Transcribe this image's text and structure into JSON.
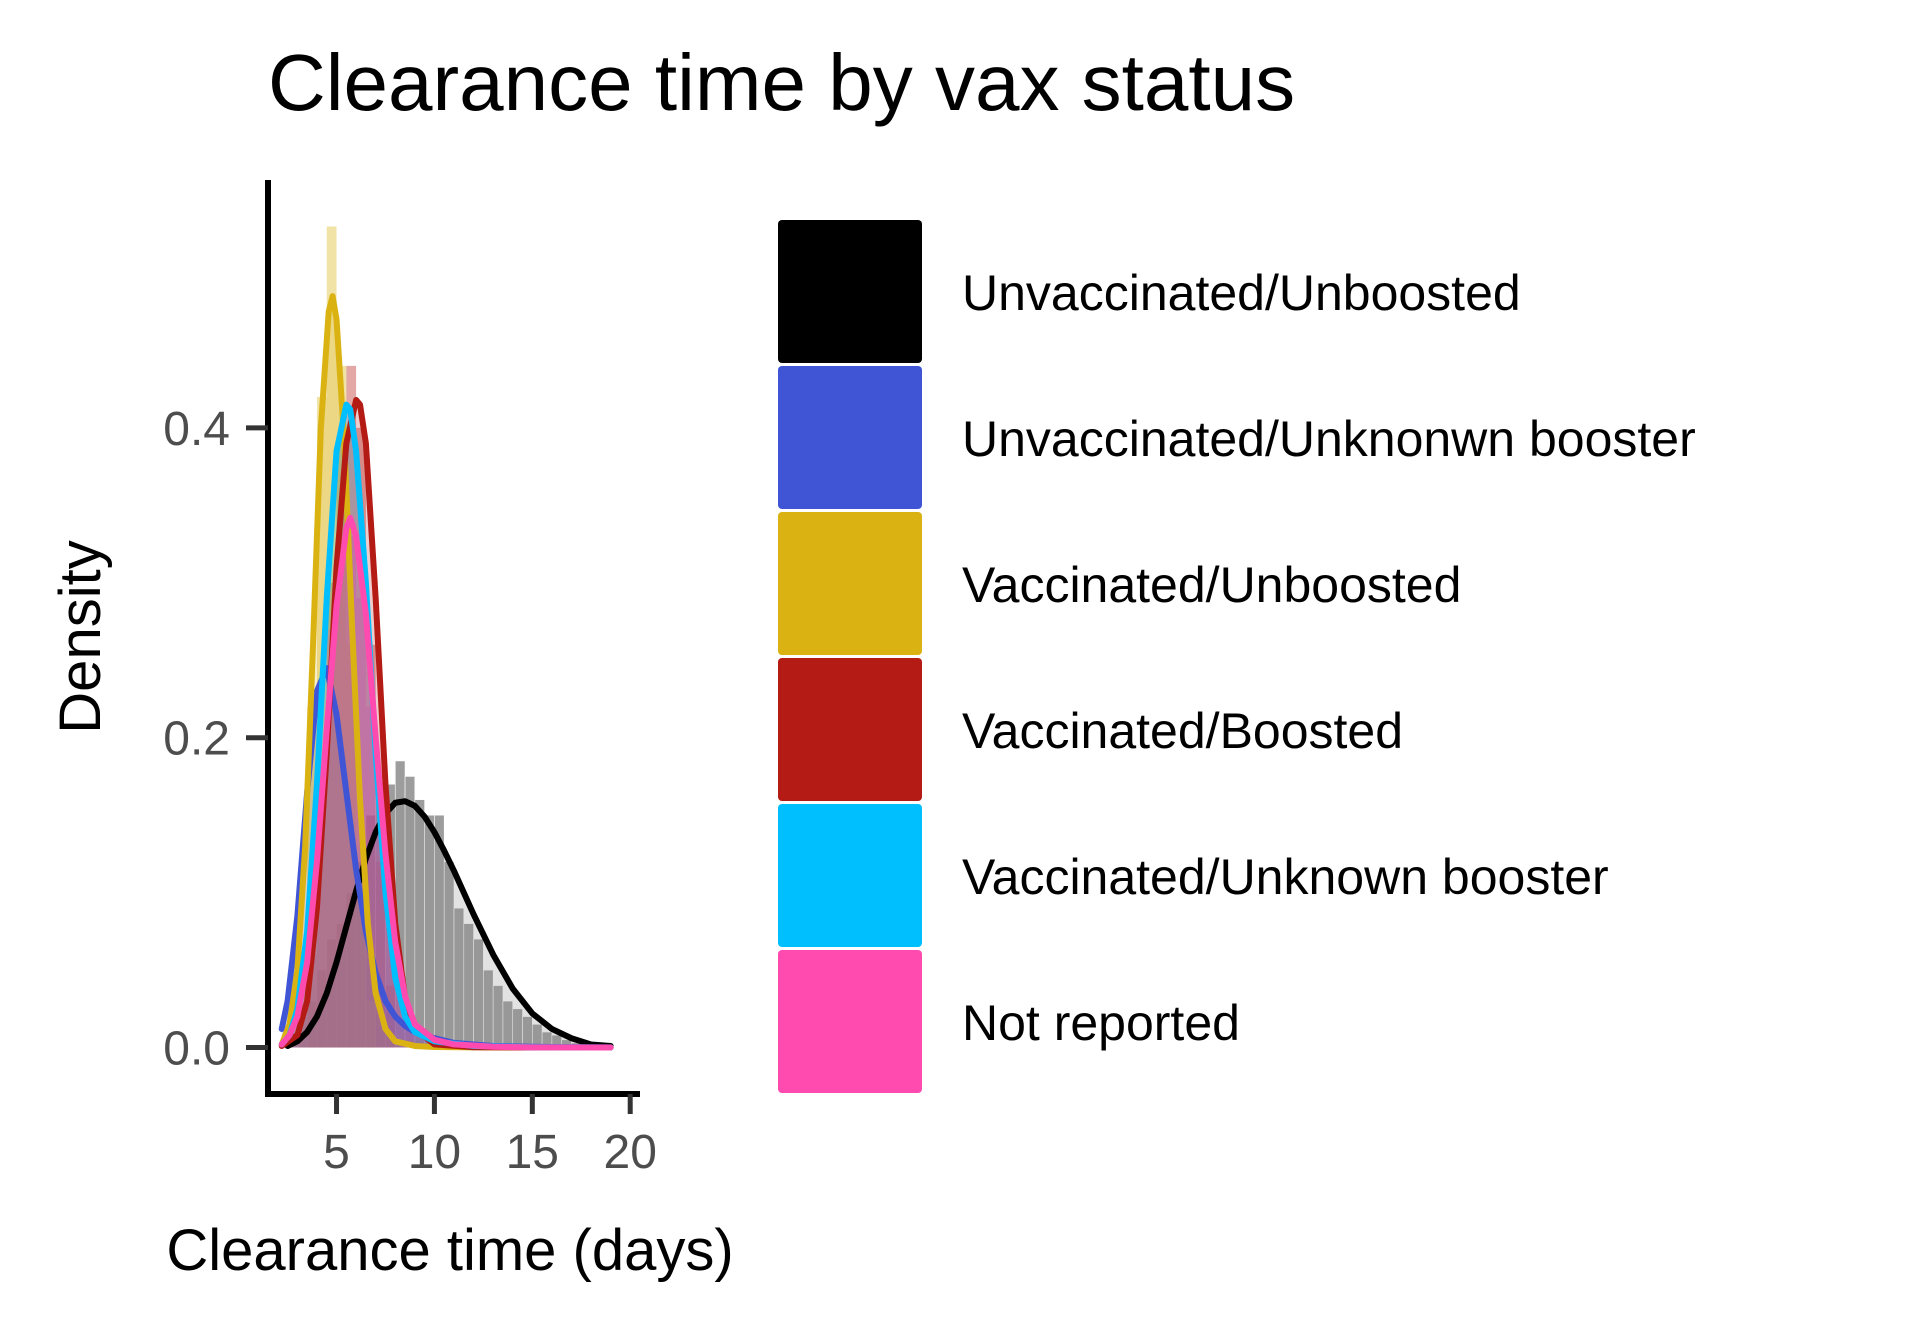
{
  "chart_data": {
    "type": "area",
    "title": "Clearance time by vax status",
    "xlabel": "Clearance time (days)",
    "ylabel": "Density",
    "xlim": [
      1.5,
      20.5
    ],
    "ylim": [
      -0.03,
      0.56
    ],
    "x_ticks": [
      5,
      10,
      15,
      20
    ],
    "x_tick_labels": [
      "5",
      "10",
      "15",
      "20"
    ],
    "y_ticks": [
      0.0,
      0.2,
      0.4
    ],
    "y_tick_labels": [
      "0.0",
      "0.2",
      "0.4"
    ],
    "grid": false,
    "legend_position": "right",
    "histograms": [
      {
        "series": "Unvaccinated/Unboosted",
        "bins": [
          {
            "x0": 2.5,
            "x1": 3.0,
            "d": 0.01
          },
          {
            "x0": 3.0,
            "x1": 3.5,
            "d": 0.02
          },
          {
            "x0": 3.5,
            "x1": 4.0,
            "d": 0.03
          },
          {
            "x0": 4.0,
            "x1": 4.5,
            "d": 0.05
          },
          {
            "x0": 4.5,
            "x1": 5.0,
            "d": 0.07
          },
          {
            "x0": 5.0,
            "x1": 5.5,
            "d": 0.08
          },
          {
            "x0": 5.5,
            "x1": 6.0,
            "d": 0.1
          },
          {
            "x0": 6.0,
            "x1": 6.5,
            "d": 0.12
          },
          {
            "x0": 6.5,
            "x1": 7.0,
            "d": 0.15
          },
          {
            "x0": 7.0,
            "x1": 7.5,
            "d": 0.17
          },
          {
            "x0": 7.5,
            "x1": 8.0,
            "d": 0.17
          },
          {
            "x0": 8.0,
            "x1": 8.5,
            "d": 0.185
          },
          {
            "x0": 8.5,
            "x1": 9.0,
            "d": 0.175
          },
          {
            "x0": 9.0,
            "x1": 9.5,
            "d": 0.16
          },
          {
            "x0": 9.5,
            "x1": 10.0,
            "d": 0.15
          },
          {
            "x0": 10.0,
            "x1": 10.5,
            "d": 0.15
          },
          {
            "x0": 10.5,
            "x1": 11.0,
            "d": 0.12
          },
          {
            "x0": 11.0,
            "x1": 11.5,
            "d": 0.09
          },
          {
            "x0": 11.5,
            "x1": 12.0,
            "d": 0.08
          },
          {
            "x0": 12.0,
            "x1": 12.5,
            "d": 0.07
          },
          {
            "x0": 12.5,
            "x1": 13.0,
            "d": 0.05
          },
          {
            "x0": 13.0,
            "x1": 13.5,
            "d": 0.04
          },
          {
            "x0": 13.5,
            "x1": 14.0,
            "d": 0.03
          },
          {
            "x0": 14.0,
            "x1": 14.5,
            "d": 0.025
          },
          {
            "x0": 14.5,
            "x1": 15.0,
            "d": 0.02
          },
          {
            "x0": 15.0,
            "x1": 15.5,
            "d": 0.015
          },
          {
            "x0": 15.5,
            "x1": 16.0,
            "d": 0.01
          },
          {
            "x0": 16.0,
            "x1": 16.5,
            "d": 0.008
          },
          {
            "x0": 16.5,
            "x1": 17.0,
            "d": 0.005
          },
          {
            "x0": 17.0,
            "x1": 17.5,
            "d": 0.003
          },
          {
            "x0": 17.5,
            "x1": 18.0,
            "d": 0.002
          },
          {
            "x0": 18.0,
            "x1": 18.5,
            "d": 0.001
          },
          {
            "x0": 18.5,
            "x1": 19.0,
            "d": 0.001
          }
        ]
      },
      {
        "series": "Vaccinated/Boosted",
        "bins": [
          {
            "x0": 3.5,
            "x1": 4.0,
            "d": 0.06
          },
          {
            "x0": 4.0,
            "x1": 4.5,
            "d": 0.16
          },
          {
            "x0": 4.5,
            "x1": 5.0,
            "d": 0.3
          },
          {
            "x0": 5.0,
            "x1": 5.5,
            "d": 0.39
          },
          {
            "x0": 5.5,
            "x1": 6.0,
            "d": 0.44
          },
          {
            "x0": 6.0,
            "x1": 6.5,
            "d": 0.4
          },
          {
            "x0": 6.5,
            "x1": 7.0,
            "d": 0.26
          },
          {
            "x0": 7.0,
            "x1": 7.5,
            "d": 0.12
          },
          {
            "x0": 7.5,
            "x1": 8.0,
            "d": 0.04
          }
        ]
      },
      {
        "series": "Vaccinated/Unboosted",
        "bins": [
          {
            "x0": 3.0,
            "x1": 3.5,
            "d": 0.05
          },
          {
            "x0": 3.5,
            "x1": 4.0,
            "d": 0.22
          },
          {
            "x0": 4.0,
            "x1": 4.5,
            "d": 0.42
          },
          {
            "x0": 4.5,
            "x1": 5.0,
            "d": 0.53
          },
          {
            "x0": 5.0,
            "x1": 5.5,
            "d": 0.44
          },
          {
            "x0": 5.5,
            "x1": 6.0,
            "d": 0.26
          },
          {
            "x0": 6.0,
            "x1": 6.5,
            "d": 0.1
          },
          {
            "x0": 6.5,
            "x1": 7.0,
            "d": 0.03
          }
        ]
      },
      {
        "series": "Not reported",
        "bins": [
          {
            "x0": 2.5,
            "x1": 3.0,
            "d": 0.02
          },
          {
            "x0": 3.0,
            "x1": 3.5,
            "d": 0.05
          },
          {
            "x0": 3.5,
            "x1": 4.0,
            "d": 0.1
          },
          {
            "x0": 4.0,
            "x1": 4.5,
            "d": 0.18
          },
          {
            "x0": 4.5,
            "x1": 5.0,
            "d": 0.27
          },
          {
            "x0": 5.0,
            "x1": 5.5,
            "d": 0.32
          },
          {
            "x0": 5.5,
            "x1": 6.0,
            "d": 0.33
          },
          {
            "x0": 6.0,
            "x1": 6.5,
            "d": 0.29
          },
          {
            "x0": 6.5,
            "x1": 7.0,
            "d": 0.22
          },
          {
            "x0": 7.0,
            "x1": 7.5,
            "d": 0.14
          },
          {
            "x0": 7.5,
            "x1": 8.0,
            "d": 0.08
          },
          {
            "x0": 8.0,
            "x1": 8.5,
            "d": 0.04
          },
          {
            "x0": 8.5,
            "x1": 9.0,
            "d": 0.02
          }
        ]
      }
    ],
    "series": [
      {
        "name": "Unvaccinated/Unboosted",
        "color": "#000000",
        "x": [
          2.5,
          3,
          3.5,
          4,
          4.5,
          5,
          5.5,
          6,
          6.5,
          7,
          7.5,
          8,
          8.5,
          9,
          9.5,
          10,
          10.5,
          11,
          11.5,
          12,
          13,
          14,
          15,
          16,
          17,
          18,
          19
        ],
        "y": [
          0.001,
          0.004,
          0.01,
          0.02,
          0.035,
          0.055,
          0.078,
          0.101,
          0.122,
          0.139,
          0.151,
          0.158,
          0.159,
          0.156,
          0.149,
          0.139,
          0.127,
          0.114,
          0.1,
          0.086,
          0.06,
          0.038,
          0.022,
          0.012,
          0.006,
          0.002,
          0.001
        ]
      },
      {
        "name": "Unvaccinated/Unknonwn booster",
        "color": "#3f55d6",
        "x": [
          2.2,
          2.5,
          3,
          3.5,
          4,
          4.5,
          5,
          5.5,
          6,
          6.5,
          7,
          7.5,
          8,
          8.5,
          9,
          9.5,
          10,
          11,
          12,
          13,
          15,
          17,
          19
        ],
        "y": [
          0.012,
          0.03,
          0.085,
          0.165,
          0.23,
          0.245,
          0.215,
          0.165,
          0.115,
          0.075,
          0.048,
          0.03,
          0.02,
          0.014,
          0.01,
          0.008,
          0.006,
          0.003,
          0.002,
          0.001,
          0.0005,
          0.0002,
          0.0001
        ]
      },
      {
        "name": "Vaccinated/Unboosted",
        "color": "#dab312",
        "x": [
          2.2,
          2.6,
          3,
          3.4,
          3.8,
          4.2,
          4.6,
          4.8,
          5,
          5.4,
          5.8,
          6.2,
          6.6,
          7,
          7.5,
          8,
          9,
          10,
          12,
          15,
          19
        ],
        "y": [
          0.002,
          0.015,
          0.05,
          0.13,
          0.26,
          0.4,
          0.475,
          0.485,
          0.47,
          0.39,
          0.27,
          0.16,
          0.08,
          0.035,
          0.012,
          0.004,
          0.001,
          0.0003,
          0.0001,
          0.0,
          0.0
        ]
      },
      {
        "name": "Vaccinated/Boosted",
        "color": "#b51b15",
        "x": [
          2.2,
          3,
          3.5,
          4,
          4.5,
          5,
          5.5,
          6,
          6.2,
          6.5,
          7,
          7.5,
          8,
          8.5,
          9,
          10,
          12,
          15,
          19
        ],
        "y": [
          0.001,
          0.008,
          0.03,
          0.09,
          0.19,
          0.31,
          0.39,
          0.418,
          0.415,
          0.39,
          0.29,
          0.17,
          0.08,
          0.032,
          0.012,
          0.002,
          0.0002,
          0.0,
          0.0
        ]
      },
      {
        "name": "Vaccinated/Unknown booster",
        "color": "#00bfff",
        "x": [
          2.2,
          2.6,
          3,
          3.5,
          4,
          4.5,
          5,
          5.5,
          5.7,
          6,
          6.5,
          7,
          7.5,
          8,
          8.5,
          9,
          10,
          12,
          15,
          19
        ],
        "y": [
          0.002,
          0.008,
          0.025,
          0.075,
          0.17,
          0.29,
          0.385,
          0.415,
          0.412,
          0.385,
          0.3,
          0.19,
          0.1,
          0.045,
          0.02,
          0.01,
          0.004,
          0.001,
          0.0002,
          0.0
        ]
      },
      {
        "name": "Not reported",
        "color": "#ff4aaf",
        "x": [
          2.2,
          2.6,
          3,
          3.5,
          4,
          4.5,
          5,
          5.5,
          5.7,
          6,
          6.5,
          7,
          7.5,
          8,
          8.5,
          9,
          10,
          11,
          13,
          15,
          19
        ],
        "y": [
          0.002,
          0.008,
          0.02,
          0.055,
          0.12,
          0.205,
          0.285,
          0.335,
          0.342,
          0.33,
          0.28,
          0.2,
          0.125,
          0.068,
          0.033,
          0.015,
          0.005,
          0.002,
          0.0005,
          0.0001,
          0.0
        ]
      }
    ]
  }
}
